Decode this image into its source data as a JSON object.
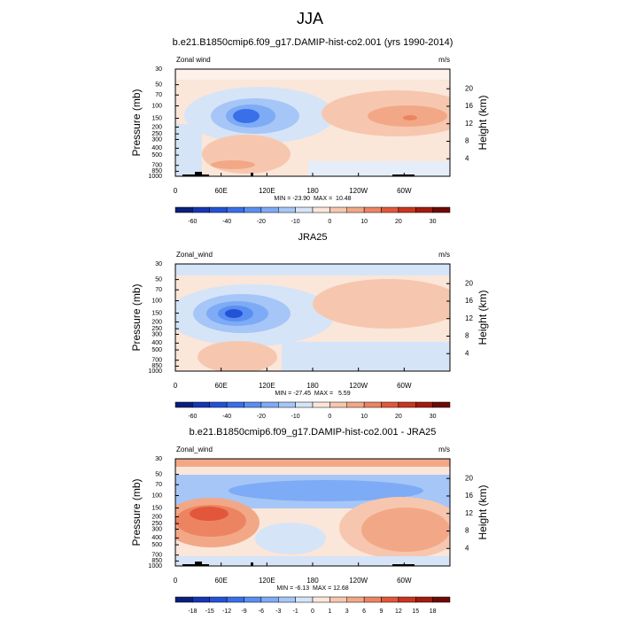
{
  "title": "JJA",
  "chart_data": [
    {
      "type": "contour",
      "title": "b.e21.B1850cmip6.f09_g17.DAMIP-hist-co2.001 (yrs 1990-2014)",
      "left_label": "Zonal wind",
      "right_label": "m/s",
      "ylabel": "Pressure (mb)",
      "y2label": "Height (km)",
      "xlim": [
        0,
        360
      ],
      "xticks": [
        0,
        {
          "value": 60,
          "label": "60E"
        },
        {
          "value": 120,
          "label": "120E"
        },
        180,
        {
          "value": 240,
          "label": "120W"
        },
        {
          "value": 300,
          "label": "60W"
        }
      ],
      "ylim": [
        1000,
        30
      ],
      "ylog": true,
      "yticks": [
        30,
        50,
        70,
        100,
        150,
        200,
        250,
        300,
        400,
        500,
        700,
        850,
        1000
      ],
      "y2lim": [
        0,
        24.5
      ],
      "y2ticks": [
        4,
        8,
        12,
        16,
        20
      ],
      "stats": "MIN = -23.90  MAX =  10.48",
      "colorbar": {
        "levels": [
          -60,
          null,
          -40,
          null,
          -20,
          null,
          -10,
          null,
          0,
          null,
          10,
          null,
          20,
          null,
          30
        ],
        "colors": [
          "#0b1f7a",
          "#1636b4",
          "#2452d6",
          "#3a6fea",
          "#5a8ff2",
          "#7eabf5",
          "#a5c6f7",
          "#d6e4f7",
          "#fbe6da",
          "#f6c7ae",
          "#f2a887",
          "#ec8462",
          "#e2573b",
          "#c8361f",
          "#a11b10",
          "#6e0a06"
        ]
      }
    },
    {
      "type": "contour",
      "title": "JRA25",
      "left_label": "Zonal_wind",
      "right_label": "m/s",
      "ylabel": "Pressure (mb)",
      "y2label": "Height (km)",
      "xlim": [
        0,
        360
      ],
      "xticks": [
        0,
        {
          "value": 60,
          "label": "60E"
        },
        {
          "value": 120,
          "label": "120E"
        },
        180,
        {
          "value": 240,
          "label": "120W"
        },
        {
          "value": 300,
          "label": "60W"
        }
      ],
      "ylim": [
        1000,
        30
      ],
      "ylog": true,
      "yticks": [
        30,
        50,
        70,
        100,
        150,
        200,
        250,
        300,
        400,
        500,
        700,
        850,
        1000
      ],
      "y2lim": [
        0,
        24.5
      ],
      "y2ticks": [
        4,
        8,
        12,
        16,
        20
      ],
      "stats": "MIN = -27.45  MAX =   5.59",
      "colorbar": {
        "levels": [
          -60,
          null,
          -40,
          null,
          -20,
          null,
          -10,
          null,
          0,
          null,
          10,
          null,
          20,
          null,
          30
        ],
        "colors": [
          "#0b1f7a",
          "#1636b4",
          "#2452d6",
          "#3a6fea",
          "#5a8ff2",
          "#7eabf5",
          "#a5c6f7",
          "#d6e4f7",
          "#fbe6da",
          "#f6c7ae",
          "#f2a887",
          "#ec8462",
          "#e2573b",
          "#c8361f",
          "#a11b10",
          "#6e0a06"
        ]
      }
    },
    {
      "type": "contour",
      "title": "b.e21.B1850cmip6.f09_g17.DAMIP-hist-co2.001 - JRA25",
      "left_label": "Zonal_wind",
      "right_label": "m/s",
      "ylabel": "Pressure (mb)",
      "y2label": "Height (km)",
      "xlim": [
        0,
        360
      ],
      "xticks": [
        0,
        {
          "value": 60,
          "label": "60E"
        },
        {
          "value": 120,
          "label": "120E"
        },
        180,
        {
          "value": 240,
          "label": "120W"
        },
        {
          "value": 300,
          "label": "60W"
        }
      ],
      "ylim": [
        1000,
        30
      ],
      "ylog": true,
      "yticks": [
        30,
        50,
        70,
        100,
        150,
        200,
        250,
        300,
        400,
        500,
        700,
        850,
        1000
      ],
      "y2lim": [
        0,
        24.5
      ],
      "y2ticks": [
        4,
        8,
        12,
        16,
        20
      ],
      "stats": "MIN = -6.13  MAX = 12.68",
      "colorbar": {
        "levels": [
          -18,
          -15,
          -12,
          -9,
          -6,
          -3,
          -1,
          0,
          1,
          3,
          6,
          9,
          12,
          15,
          18
        ],
        "colors": [
          "#0b1f7a",
          "#1636b4",
          "#2452d6",
          "#3a6fea",
          "#5a8ff2",
          "#7eabf5",
          "#a5c6f7",
          "#d6e4f7",
          "#fbe6da",
          "#f6c7ae",
          "#f2a887",
          "#ec8462",
          "#e2573b",
          "#c8361f",
          "#a11b10",
          "#6e0a06"
        ]
      }
    }
  ]
}
